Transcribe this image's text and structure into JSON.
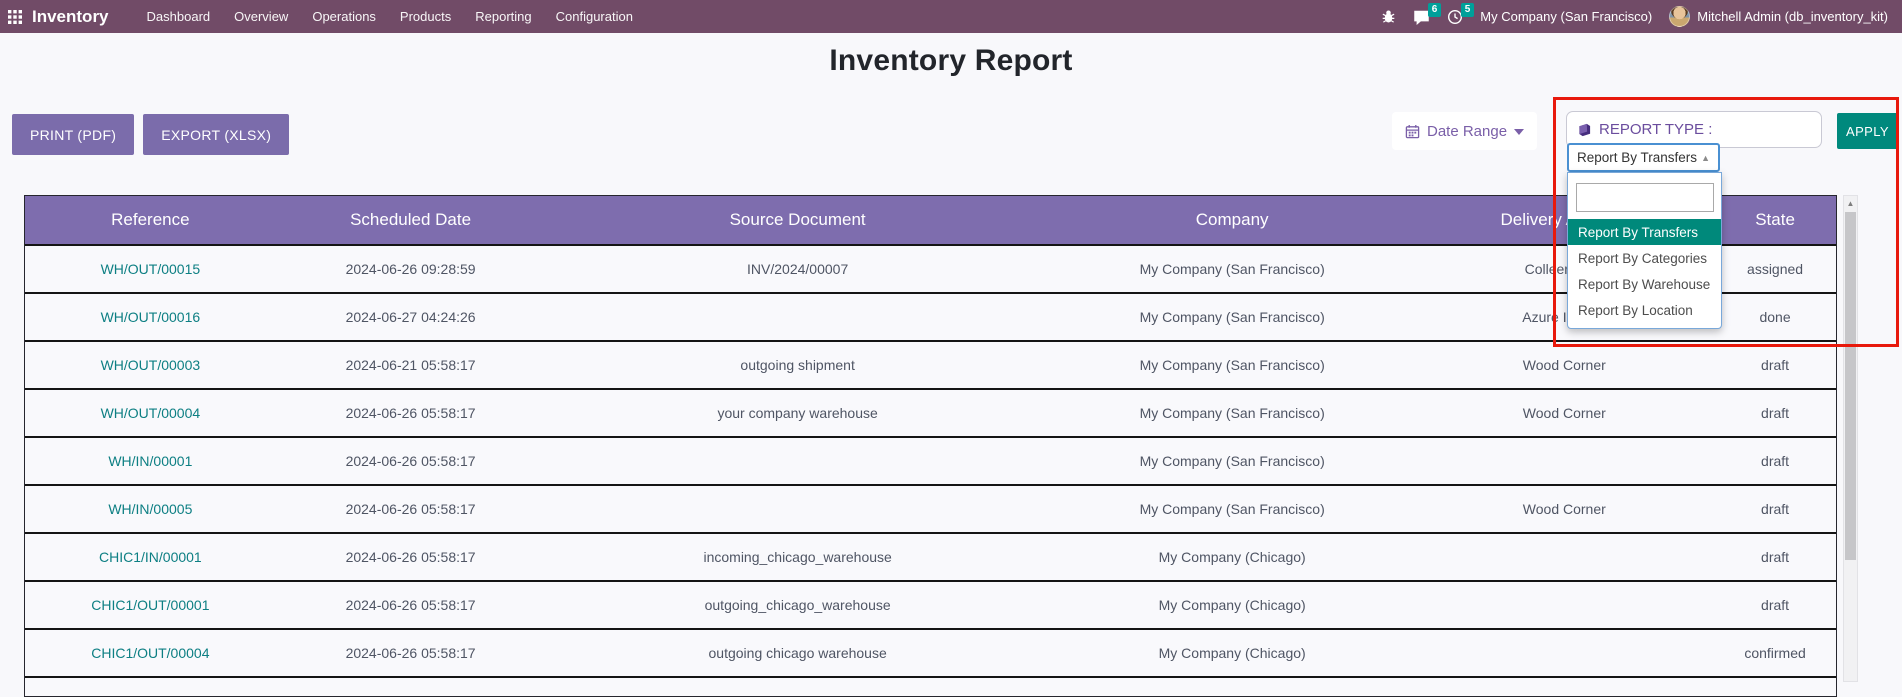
{
  "topbar": {
    "brand": "Inventory",
    "menu": [
      "Dashboard",
      "Overview",
      "Operations",
      "Products",
      "Reporting",
      "Configuration"
    ],
    "messages_count": "6",
    "activities_count": "5",
    "company": "My Company (San Francisco)",
    "user": "Mitchell Admin (db_inventory_kit)"
  },
  "page": {
    "title": "Inventory Report",
    "print_label": "PRINT (PDF)",
    "export_label": "EXPORT (XLSX)",
    "date_range_label": "Date Range",
    "report_type_label": "REPORT TYPE :",
    "apply_label": "APPLY",
    "report_type_selected": "Report By Transfers",
    "report_type_options": [
      "Report By Transfers",
      "Report By Categories",
      "Report By Warehouse",
      "Report By Location"
    ],
    "search_value": ""
  },
  "table": {
    "headers": [
      "Reference",
      "Scheduled Date",
      "Source Document",
      "Company",
      "Delivery Address",
      "State"
    ],
    "rows": [
      [
        "WH/OUT/00015",
        "2024-06-26 09:28:59",
        "INV/2024/00007",
        "My Company (San Francisco)",
        "Colleen Diaz",
        "assigned"
      ],
      [
        "WH/OUT/00016",
        "2024-06-27 04:24:26",
        "",
        "My Company (San Francisco)",
        "Azure Interior",
        "done"
      ],
      [
        "WH/OUT/00003",
        "2024-06-21 05:58:17",
        "outgoing shipment",
        "My Company (San Francisco)",
        "Wood Corner",
        "draft"
      ],
      [
        "WH/OUT/00004",
        "2024-06-26 05:58:17",
        "your company warehouse",
        "My Company (San Francisco)",
        "Wood Corner",
        "draft"
      ],
      [
        "WH/IN/00001",
        "2024-06-26 05:58:17",
        "",
        "My Company (San Francisco)",
        "",
        "draft"
      ],
      [
        "WH/IN/00005",
        "2024-06-26 05:58:17",
        "",
        "My Company (San Francisco)",
        "Wood Corner",
        "draft"
      ],
      [
        "CHIC1/IN/00001",
        "2024-06-26 05:58:17",
        "incoming_chicago_warehouse",
        "My Company (Chicago)",
        "",
        "draft"
      ],
      [
        "CHIC1/OUT/00001",
        "2024-06-26 05:58:17",
        "outgoing_chicago_warehouse",
        "My Company (Chicago)",
        "",
        "draft"
      ],
      [
        "CHIC1/OUT/00004",
        "2024-06-26 05:58:17",
        "outgoing chicago warehouse",
        "My Company (Chicago)",
        "",
        "confirmed"
      ]
    ]
  },
  "colors": {
    "nav_bg": "#714b67",
    "badge_teal": "#00a09a",
    "button_purple": "#7b6cab",
    "header_purple": "#7e6dae",
    "link_teal": "#0d7f83",
    "apply_teal": "#00897d",
    "selected_option_teal": "#00897b",
    "select_border_blue": "#4a90d2",
    "annotation_red": "#e8190c"
  }
}
